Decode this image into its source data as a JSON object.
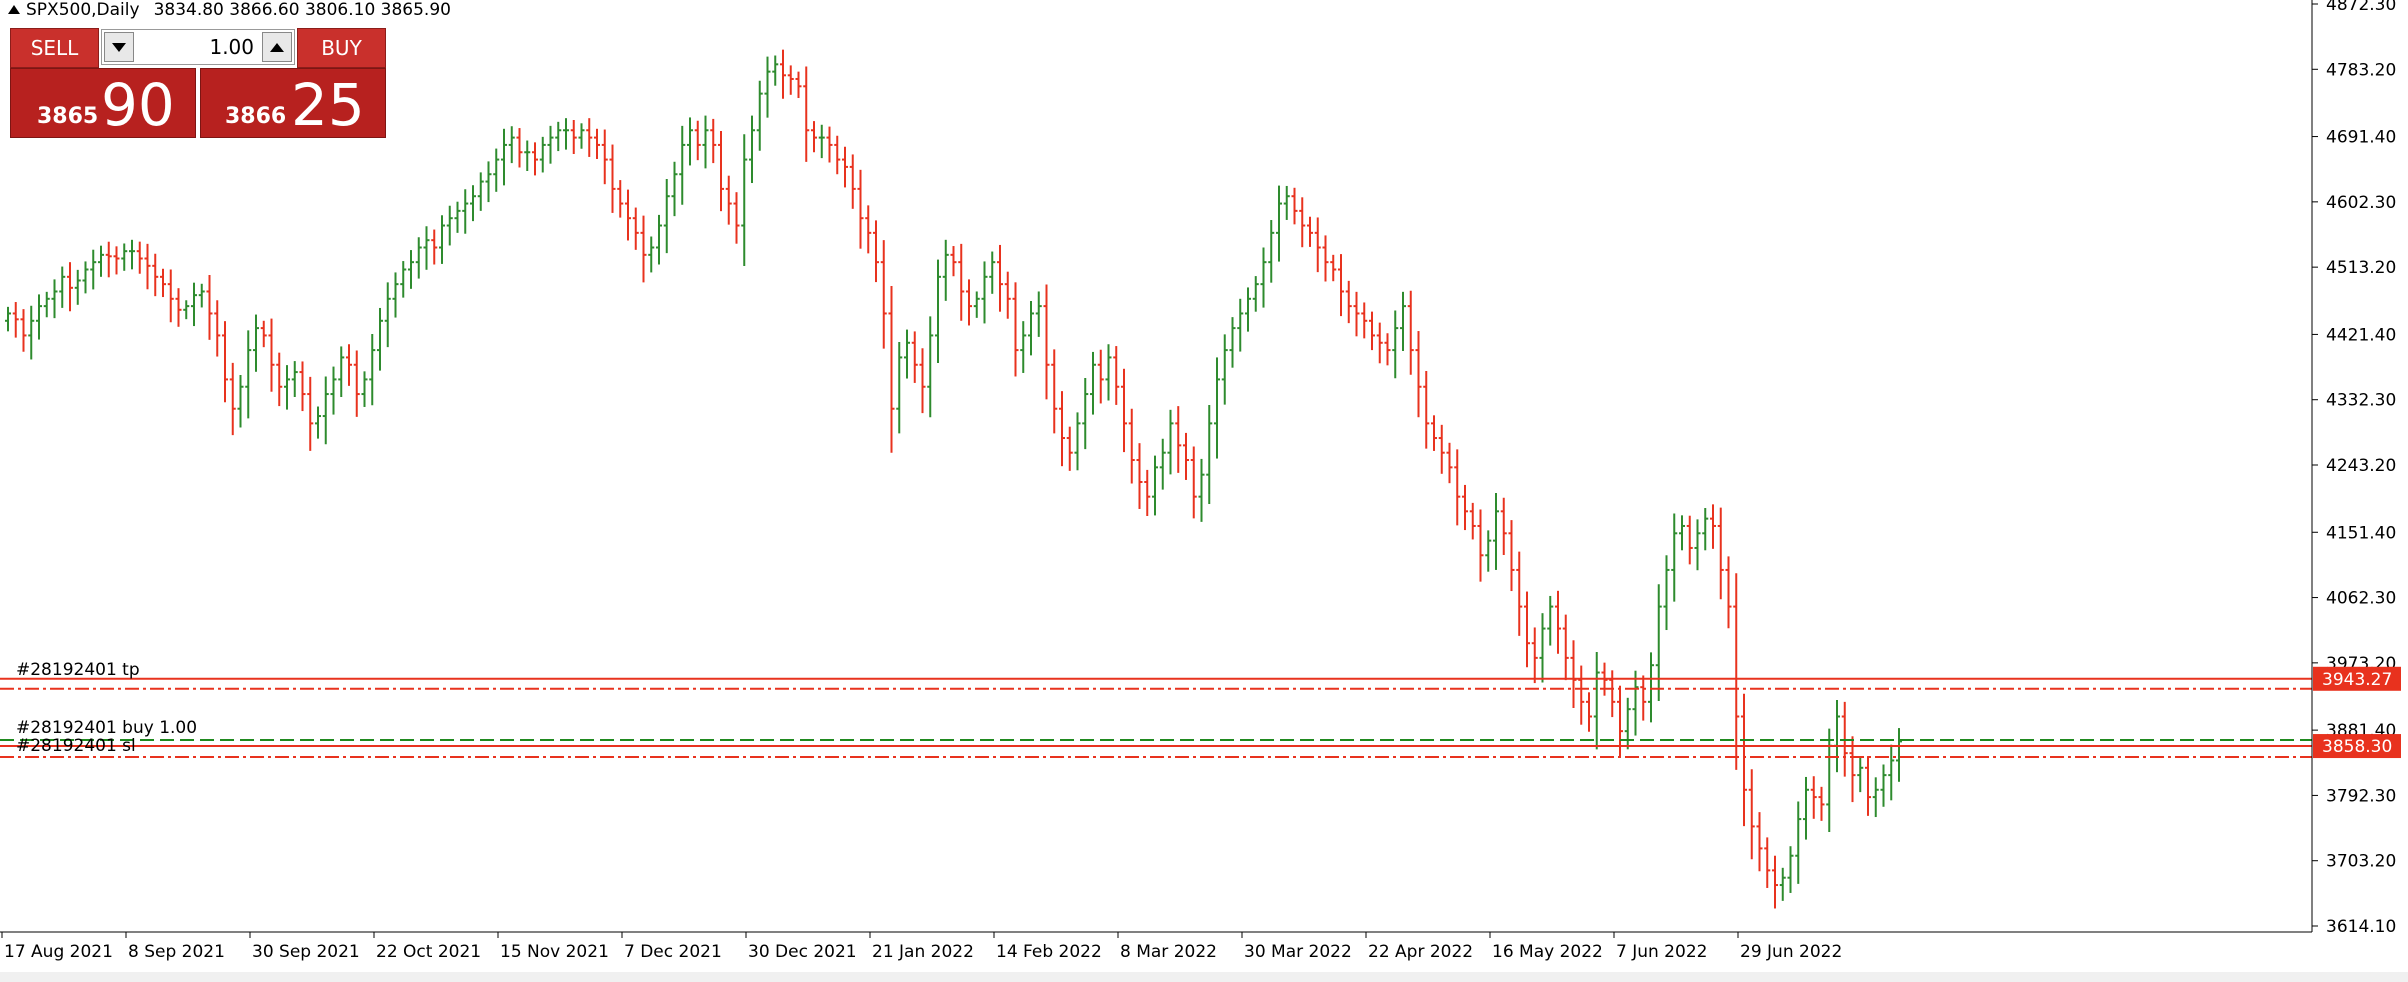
{
  "header": {
    "symbol": "SPX500,Daily",
    "ohlc": "3834.80 3866.60 3806.10 3865.90"
  },
  "trade_panel": {
    "sell_label": "SELL",
    "buy_label": "BUY",
    "lot_value": "1.00",
    "bid_small": "3865",
    "bid_big": "90",
    "ask_small": "3866",
    "ask_big": "25"
  },
  "colors": {
    "up": "#2e8b2e",
    "down": "#e8321e",
    "sl_tp_line": "#e8321e",
    "entry_line": "#1f8a1f",
    "axis": "#000000",
    "price_label_bg": "#e8321e"
  },
  "chart_data": {
    "type": "ohlc",
    "ylim": [
      3614.1,
      4872.3
    ],
    "y_ticks": [
      "4872.30",
      "4783.20",
      "4691.40",
      "4602.30",
      "4513.20",
      "4421.40",
      "4332.30",
      "4243.20",
      "4151.40",
      "4062.30",
      "3973.20",
      "3881.40",
      "3792.30",
      "3703.20",
      "3614.10"
    ],
    "x_labels": [
      "17 Aug 2021",
      "8 Sep 2021",
      "30 Sep 2021",
      "22 Oct 2021",
      "15 Nov 2021",
      "7 Dec 2021",
      "30 Dec 2021",
      "21 Jan 2022",
      "14 Feb 2022",
      "8 Mar 2022",
      "30 Mar 2022",
      "22 Apr 2022",
      "16 May 2022",
      "7 Jun 2022",
      "29 Jun 2022"
    ],
    "x_label_bars": [
      0,
      16,
      32,
      48,
      64,
      80,
      96,
      112,
      128,
      144,
      160,
      176,
      192,
      208,
      224
    ],
    "closes": [
      4450,
      4442,
      4420,
      4440,
      4460,
      4470,
      4480,
      4500,
      4485,
      4495,
      4510,
      4520,
      4530,
      4528,
      4525,
      4535,
      4535,
      4525,
      4515,
      4500,
      4490,
      4470,
      4455,
      4460,
      4475,
      4480,
      4450,
      4420,
      4360,
      4320,
      4350,
      4400,
      4430,
      4420,
      4380,
      4350,
      4360,
      4370,
      4340,
      4300,
      4310,
      4340,
      4360,
      4390,
      4380,
      4340,
      4360,
      4400,
      4440,
      4470,
      4490,
      4510,
      4520,
      4540,
      4550,
      4540,
      4570,
      4580,
      4590,
      4600,
      4610,
      4630,
      4640,
      4660,
      4680,
      4690,
      4670,
      4670,
      4660,
      4680,
      4690,
      4700,
      4700,
      4690,
      4700,
      4690,
      4680,
      4660,
      4620,
      4600,
      4580,
      4560,
      4530,
      4540,
      4570,
      4610,
      4640,
      4680,
      4700,
      4680,
      4700,
      4680,
      4620,
      4600,
      4570,
      4660,
      4700,
      4750,
      4780,
      4790,
      4775,
      4770,
      4760,
      4700,
      4690,
      4690,
      4680,
      4660,
      4650,
      4620,
      4580,
      4560,
      4520,
      4450,
      4320,
      4390,
      4410,
      4380,
      4350,
      4420,
      4500,
      4530,
      4520,
      4480,
      4460,
      4470,
      4500,
      4520,
      4490,
      4470,
      4400,
      4420,
      4450,
      4460,
      4380,
      4320,
      4280,
      4260,
      4300,
      4340,
      4380,
      4360,
      4390,
      4350,
      4300,
      4250,
      4220,
      4200,
      4240,
      4260,
      4300,
      4270,
      4250,
      4200,
      4230,
      4300,
      4360,
      4400,
      4430,
      4450,
      4470,
      4490,
      4520,
      4560,
      4600,
      4610,
      4590,
      4570,
      4560,
      4540,
      4520,
      4510,
      4480,
      4460,
      4450,
      4440,
      4420,
      4410,
      4400,
      4430,
      4460,
      4400,
      4350,
      4300,
      4280,
      4260,
      4240,
      4200,
      4180,
      4160,
      4120,
      4140,
      4180,
      4150,
      4100,
      4050,
      4000,
      3980,
      4020,
      4050,
      4020,
      3980,
      3950,
      3920,
      3900,
      3960,
      3950,
      3920,
      3880,
      3910,
      3940,
      3920,
      3970,
      4050,
      4100,
      4150,
      4160,
      4130,
      4150,
      4170,
      4160,
      4100,
      4050,
      3900,
      3800,
      3750,
      3720,
      3690,
      3670,
      3680,
      3710,
      3760,
      3800,
      3790,
      3780,
      3860,
      3900,
      3850,
      3820,
      3830,
      3790,
      3800,
      3820,
      3840,
      3866
    ]
  },
  "orders": {
    "tp_label": "#28192401 tp",
    "tp_price": 3943.27,
    "tp_price_text": "3943.27",
    "entry_label": "#28192401 buy 1.00",
    "entry_price": 3868.0,
    "sl_label": "#28192401 sl",
    "sl_price": 3858.3,
    "sl_price_text": "3858.30"
  }
}
